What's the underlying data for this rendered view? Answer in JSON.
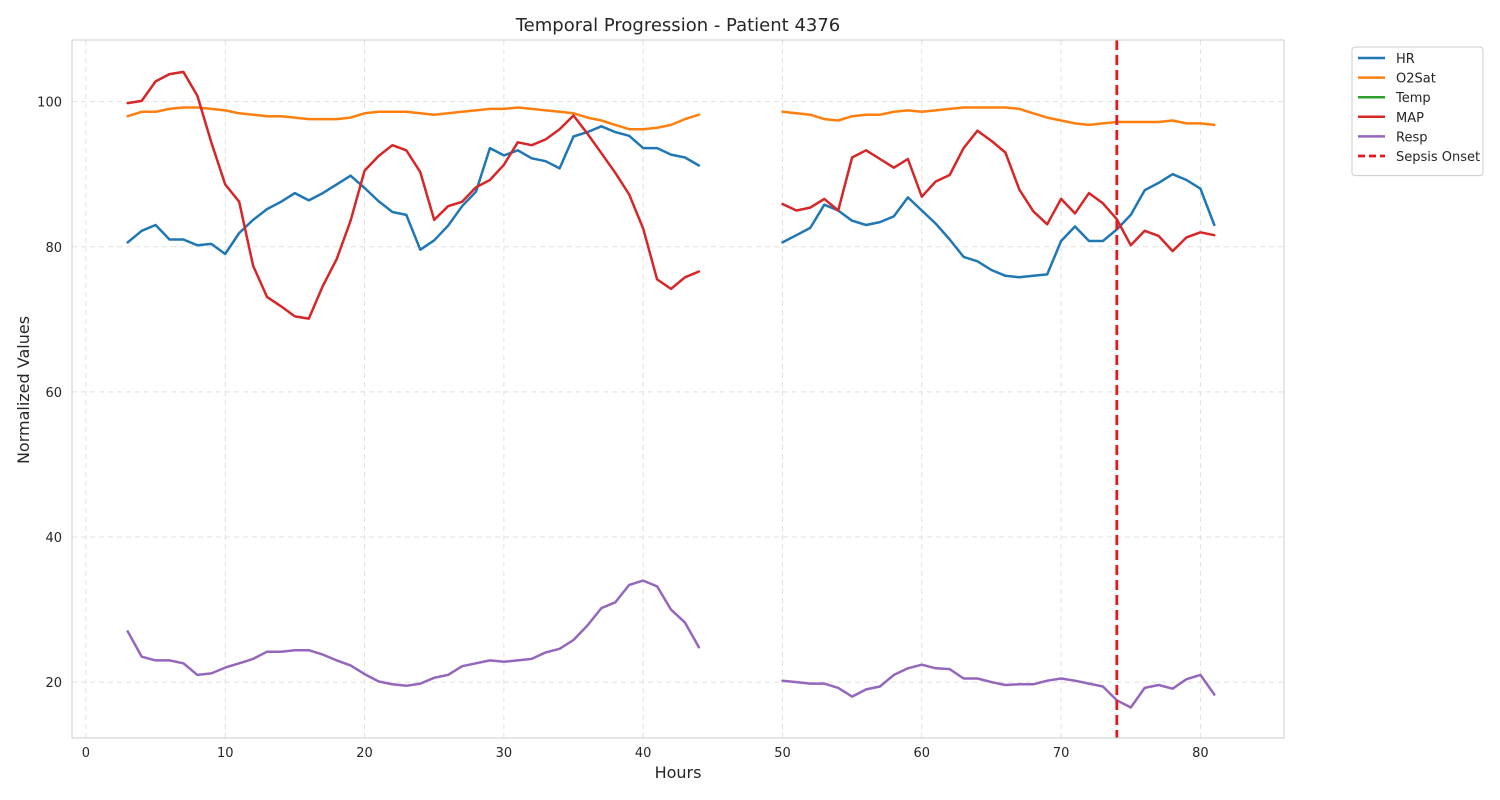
{
  "chart_data": {
    "type": "line",
    "title": "Temporal Progression - Patient 4376",
    "xlabel": "Hours",
    "ylabel": "Normalized Values",
    "xlim": [
      -1,
      86
    ],
    "ylim": [
      12.3,
      108.5
    ],
    "xticks": [
      0,
      10,
      20,
      30,
      40,
      50,
      60,
      70,
      80
    ],
    "yticks": [
      20,
      40,
      60,
      80,
      100
    ],
    "grid": true,
    "legend_position": "outside-top-right",
    "series": [
      {
        "name": "HR",
        "color": "#1f77b4",
        "x": [
          3,
          4,
          5,
          6,
          7,
          8,
          9,
          10,
          11,
          12,
          13,
          14,
          15,
          16,
          17,
          18,
          19,
          20,
          21,
          22,
          23,
          24,
          25,
          26,
          27,
          28,
          29,
          30,
          31,
          32,
          33,
          34,
          35,
          36,
          37,
          38,
          39,
          40,
          41,
          42,
          43,
          44,
          null,
          50,
          51,
          52,
          53,
          54,
          55,
          56,
          57,
          58,
          59,
          60,
          61,
          62,
          63,
          64,
          65,
          66,
          67,
          68,
          69,
          70,
          71,
          72,
          73,
          74,
          75,
          76,
          77,
          78,
          79,
          80,
          81
        ],
        "values": [
          80.6,
          82.2,
          83.0,
          81.0,
          81.0,
          80.2,
          80.4,
          79.0,
          81.9,
          83.7,
          85.2,
          86.2,
          87.4,
          86.4,
          87.4,
          88.6,
          89.8,
          88.1,
          86.3,
          84.8,
          84.4,
          79.6,
          80.9,
          82.9,
          85.6,
          87.6,
          93.6,
          92.6,
          93.3,
          92.2,
          91.8,
          90.8,
          95.2,
          95.8,
          96.6,
          95.8,
          95.3,
          93.6,
          93.6,
          92.7,
          92.3,
          91.2,
          null,
          80.6,
          81.6,
          82.6,
          85.8,
          85.0,
          83.6,
          83.0,
          83.4,
          84.2,
          86.8,
          85.0,
          83.2,
          81.0,
          78.6,
          78.0,
          76.8,
          76.0,
          75.8,
          76.0,
          76.2,
          80.8,
          82.8,
          80.8,
          80.8,
          82.4,
          84.4,
          87.8,
          88.8,
          90.0,
          89.2,
          88.0,
          83.0
        ]
      },
      {
        "name": "O2Sat",
        "color": "#ff7f0e",
        "x": [
          3,
          4,
          5,
          6,
          7,
          8,
          9,
          10,
          11,
          12,
          13,
          14,
          15,
          16,
          17,
          18,
          19,
          20,
          21,
          22,
          23,
          24,
          25,
          26,
          27,
          28,
          29,
          30,
          31,
          32,
          33,
          34,
          35,
          36,
          37,
          38,
          39,
          40,
          41,
          42,
          43,
          44,
          null,
          50,
          51,
          52,
          53,
          54,
          55,
          56,
          57,
          58,
          59,
          60,
          61,
          62,
          63,
          64,
          65,
          66,
          67,
          68,
          69,
          70,
          71,
          72,
          73,
          74,
          75,
          76,
          77,
          78,
          79,
          80,
          81
        ],
        "values": [
          98.0,
          98.6,
          98.6,
          99.0,
          99.2,
          99.2,
          99.0,
          98.8,
          98.4,
          98.2,
          98.0,
          98.0,
          97.8,
          97.6,
          97.6,
          97.6,
          97.8,
          98.4,
          98.6,
          98.6,
          98.6,
          98.4,
          98.2,
          98.4,
          98.6,
          98.8,
          99.0,
          99.0,
          99.2,
          99.0,
          98.8,
          98.6,
          98.4,
          97.8,
          97.4,
          96.8,
          96.2,
          96.2,
          96.4,
          96.8,
          97.6,
          98.2,
          null,
          98.6,
          98.4,
          98.2,
          97.6,
          97.4,
          98.0,
          98.2,
          98.2,
          98.6,
          98.8,
          98.6,
          98.8,
          99.0,
          99.2,
          99.2,
          99.2,
          99.2,
          99.0,
          98.4,
          97.8,
          97.4,
          97.0,
          96.8,
          97.0,
          97.2,
          97.2,
          97.2,
          97.2,
          97.4,
          97.0,
          97.0,
          96.8
        ]
      },
      {
        "name": "Temp",
        "color": "#2ca02c",
        "x": [],
        "values": []
      },
      {
        "name": "MAP",
        "color": "#d62728",
        "x": [
          3,
          4,
          5,
          6,
          7,
          8,
          9,
          10,
          11,
          12,
          13,
          14,
          15,
          16,
          17,
          18,
          19,
          20,
          21,
          22,
          23,
          24,
          25,
          26,
          27,
          28,
          29,
          30,
          31,
          32,
          33,
          34,
          35,
          36,
          37,
          38,
          39,
          40,
          41,
          42,
          43,
          44,
          null,
          50,
          51,
          52,
          53,
          54,
          55,
          56,
          57,
          58,
          59,
          60,
          61,
          62,
          63,
          64,
          65,
          66,
          67,
          68,
          69,
          70,
          71,
          72,
          73,
          74,
          75,
          76,
          77,
          78,
          79,
          80,
          81
        ],
        "values": [
          99.8,
          100.1,
          102.8,
          103.8,
          104.1,
          100.8,
          94.4,
          88.6,
          86.2,
          77.4,
          73.1,
          71.8,
          70.4,
          70.1,
          74.6,
          78.3,
          83.6,
          90.5,
          92.5,
          94.0,
          93.3,
          90.3,
          83.7,
          85.6,
          86.2,
          88.2,
          89.2,
          91.3,
          94.4,
          94.0,
          94.8,
          96.2,
          98.1,
          95.6,
          92.9,
          90.2,
          87.2,
          82.5,
          75.5,
          74.2,
          75.8,
          76.6,
          null,
          85.9,
          85.0,
          85.4,
          86.6,
          85.0,
          92.3,
          93.3,
          92.1,
          90.9,
          92.1,
          86.9,
          89.0,
          89.9,
          93.6,
          96.0,
          94.6,
          93.0,
          87.9,
          84.9,
          83.1,
          86.6,
          84.6,
          87.4,
          86.0,
          83.8,
          80.2,
          82.2,
          81.5,
          79.4,
          81.3,
          82.0,
          81.6
        ]
      },
      {
        "name": "Resp",
        "color": "#9467bd",
        "x": [
          3,
          4,
          5,
          6,
          7,
          8,
          9,
          10,
          11,
          12,
          13,
          14,
          15,
          16,
          17,
          18,
          19,
          20,
          21,
          22,
          23,
          24,
          25,
          26,
          27,
          28,
          29,
          30,
          31,
          32,
          33,
          34,
          35,
          36,
          37,
          38,
          39,
          40,
          41,
          42,
          43,
          44,
          null,
          50,
          51,
          52,
          53,
          54,
          55,
          56,
          57,
          58,
          59,
          60,
          61,
          62,
          63,
          64,
          65,
          66,
          67,
          68,
          69,
          70,
          71,
          72,
          73,
          74,
          75,
          76,
          77,
          78,
          79,
          80,
          81
        ],
        "values": [
          27.0,
          23.5,
          23.0,
          23.0,
          22.6,
          21.0,
          21.2,
          22.0,
          22.6,
          23.2,
          24.2,
          24.2,
          24.4,
          24.4,
          23.8,
          23.0,
          22.3,
          21.1,
          20.1,
          19.7,
          19.5,
          19.8,
          20.6,
          21.0,
          22.2,
          22.6,
          23.0,
          22.8,
          23.0,
          23.2,
          24.1,
          24.6,
          25.8,
          27.8,
          30.2,
          31.0,
          33.4,
          34.0,
          33.2,
          30.0,
          28.2,
          24.8,
          null,
          20.2,
          20.0,
          19.8,
          19.8,
          19.2,
          18.0,
          19.0,
          19.4,
          21.0,
          21.9,
          22.4,
          21.9,
          21.8,
          20.5,
          20.5,
          20.0,
          19.6,
          19.7,
          19.7,
          20.2,
          20.5,
          20.2,
          19.8,
          19.4,
          17.5,
          16.5,
          19.2,
          19.6,
          19.1,
          20.4,
          21.0,
          18.3
        ]
      }
    ],
    "annotations": [
      {
        "type": "vline",
        "name": "Sepsis Onset",
        "x": 74,
        "color": "#e31a1c",
        "style": "dashed"
      }
    ]
  },
  "legend": {
    "items": [
      {
        "label": "HR",
        "color": "#1f77b4",
        "style": "solid"
      },
      {
        "label": "O2Sat",
        "color": "#ff7f0e",
        "style": "solid"
      },
      {
        "label": "Temp",
        "color": "#2ca02c",
        "style": "solid"
      },
      {
        "label": "MAP",
        "color": "#d62728",
        "style": "solid"
      },
      {
        "label": "Resp",
        "color": "#9467bd",
        "style": "solid"
      },
      {
        "label": "Sepsis Onset",
        "color": "#e31a1c",
        "style": "dashed"
      }
    ]
  },
  "colors": {
    "grid": "#e0e0e0",
    "axis_frame": "#cccccc",
    "text": "#262626",
    "background": "#ffffff"
  }
}
